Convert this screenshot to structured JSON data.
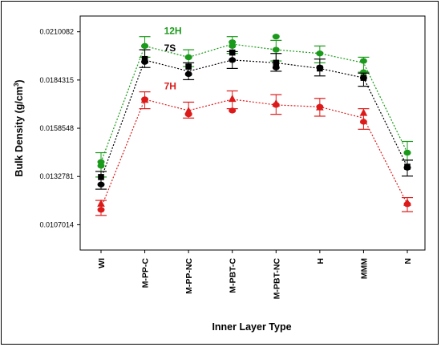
{
  "chart_data": {
    "type": "scatter",
    "xlabel": "Inner Layer Type",
    "ylabel": "Bulk Density (g/cm³)",
    "ylabel_main": "Bulk Density (g/cm",
    "ylabel_sup": "3",
    "ylabel_close": ")",
    "categories": [
      "WI",
      "M-PP-C",
      "M-PP-NC",
      "M-PBT-C",
      "M-PBT-NC",
      "H",
      "MMM",
      "N"
    ],
    "yticks": [
      "0.0107014",
      "0.0132781",
      "0.0158548",
      "0.0184315",
      "0.0210082"
    ],
    "ytick_values": [
      0.0107014,
      0.0132781,
      0.0158548,
      0.0184315,
      0.0210082
    ],
    "ylim": [
      0.00935,
      0.02185
    ],
    "grid": false,
    "series": [
      {
        "name": "12H",
        "color": "#1a9a1a",
        "marker": "diamond",
        "mean": [
          0.01405,
          0.02025,
          0.01965,
          0.02035,
          0.02005,
          0.01985,
          0.01935,
          0.01455
        ],
        "err_low": [
          0.01325,
          0.01965,
          0.01915,
          0.01985,
          0.01945,
          0.01935,
          0.01885,
          0.01415
        ],
        "err_high": [
          0.01455,
          0.02075,
          0.02005,
          0.02075,
          0.02055,
          0.02025,
          0.01965,
          0.01515
        ],
        "points": [
          [
            0.01385,
            0.01405
          ],
          [
            0.02025,
            0.02025
          ],
          [
            0.01965,
            0.01965
          ],
          [
            0.02025,
            0.02045
          ],
          [
            0.02005,
            0.02075
          ],
          [
            0.01985,
            0.01985
          ],
          [
            0.01885,
            0.01945
          ],
          [
            0.01455,
            0.01455
          ]
        ]
      },
      {
        "name": "7S",
        "color": "#000000",
        "marker": "square",
        "mean": [
          0.01315,
          0.0195,
          0.0189,
          0.0195,
          0.01935,
          0.01905,
          0.01855,
          0.0138
        ],
        "err_low": [
          0.0126,
          0.0191,
          0.01845,
          0.01905,
          0.0189,
          0.01865,
          0.0181,
          0.0133
        ],
        "err_high": [
          0.01355,
          0.02005,
          0.01935,
          0.01995,
          0.01985,
          0.01955,
          0.0188,
          0.01415
        ],
        "points": [
          [
            0.01285,
            0.01325
          ],
          [
            0.0194,
            0.01955
          ],
          [
            0.01875,
            0.01915
          ],
          [
            0.0195,
            0.0199
          ],
          [
            0.0191,
            0.01935
          ],
          [
            0.0191,
            0.01905
          ],
          [
            0.01855,
            0.01855
          ],
          [
            0.01375,
            0.0138
          ]
        ]
      },
      {
        "name": "7H",
        "color": "#dd1a1a",
        "marker": "triangle",
        "mean": [
          0.0116,
          0.0174,
          0.0168,
          0.0174,
          0.0171,
          0.017,
          0.0164,
          0.0118
        ],
        "err_low": [
          0.0112,
          0.0169,
          0.0164,
          0.0169,
          0.0166,
          0.0165,
          0.0158,
          0.0114
        ],
        "err_high": [
          0.012,
          0.0178,
          0.01725,
          0.01785,
          0.01765,
          0.01745,
          0.0169,
          0.01215
        ],
        "points": [
          [
            0.0115,
            0.01185
          ],
          [
            0.0174,
            0.0174
          ],
          [
            0.0166,
            0.0168
          ],
          [
            0.0168,
            0.01745
          ],
          [
            0.0171,
            0.0172
          ],
          [
            0.017,
            0.017
          ],
          [
            0.0162,
            0.0167
          ],
          [
            0.0118,
            0.0119
          ]
        ]
      }
    ]
  }
}
